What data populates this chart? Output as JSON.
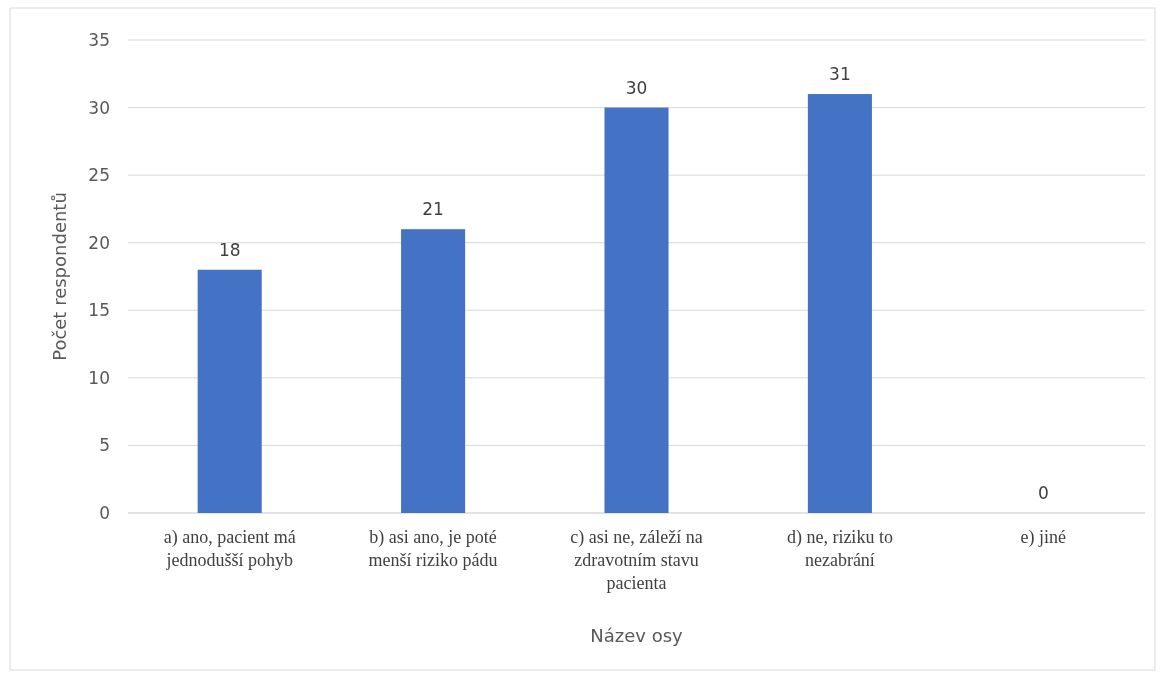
{
  "chart_data": {
    "type": "bar",
    "xlabel": "Název osy",
    "ylabel": "Počet respondentů",
    "categories": [
      "a) ano, pacient má jednodušší pohyb",
      "b) asi ano, je poté menší riziko pádu",
      "c) asi ne, záleží na zdravotním stavu pacienta",
      "d) ne, riziku to nezabrání",
      "e) jiné"
    ],
    "values": [
      18,
      21,
      30,
      31,
      0
    ],
    "color": "#4472c4",
    "ylim": [
      0,
      35
    ],
    "yticks": [
      0,
      5,
      10,
      15,
      20,
      25,
      30,
      35
    ],
    "grid": "y",
    "data_labels": true
  }
}
